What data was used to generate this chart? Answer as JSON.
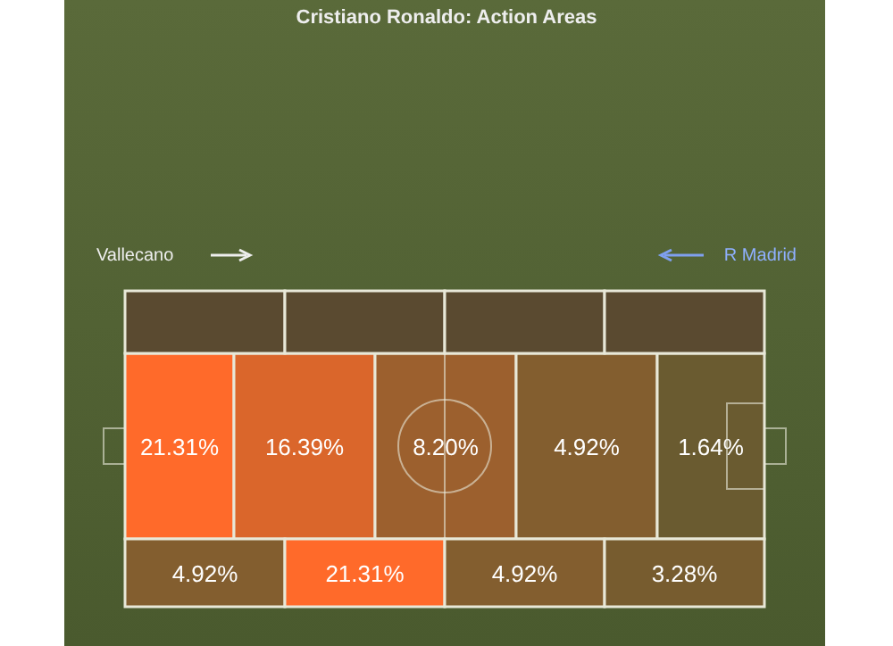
{
  "chart_data": {
    "type": "other",
    "title": "Cristiano Ronaldo: Action Areas",
    "annotations": [
      "Vallecano",
      "R Madrid"
    ],
    "values": [
      21.31,
      16.39,
      8.2,
      4.92,
      1.64,
      4.92,
      21.31,
      4.92,
      3.28
    ],
    "value_labels": [
      "21.31%",
      "16.39%",
      "8.20%",
      "4.92%",
      "1.64%",
      "4.92%",
      "21.31%",
      "4.92%",
      "3.28%"
    ]
  }
}
